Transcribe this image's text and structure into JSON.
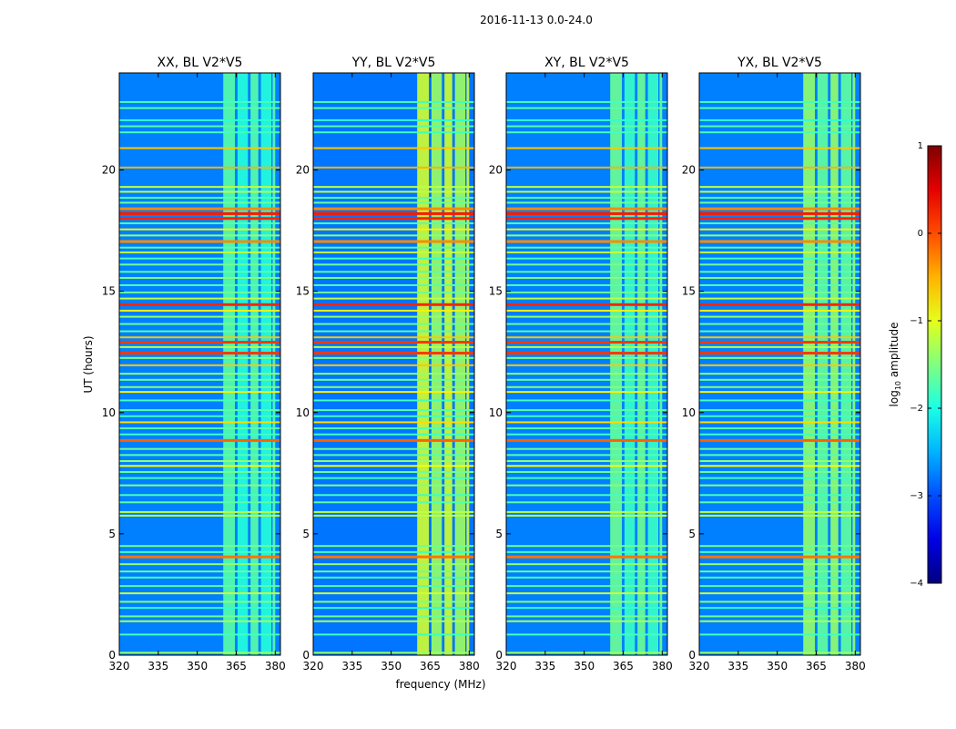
{
  "chart_data": {
    "type": "heatmap",
    "suptitle": "2016-11-13 0.0-24.0",
    "xlabel": "frequency (MHz)",
    "ylabel": "UT (hours)",
    "xlim": [
      320,
      382
    ],
    "ylim": [
      0,
      24
    ],
    "xticks": [
      "320",
      "335",
      "350",
      "365",
      "380"
    ],
    "yticks": [
      "0",
      "5",
      "10",
      "15",
      "20"
    ],
    "colormap": "jet",
    "colorbar": {
      "label_prefix": "log",
      "label_sub": "10",
      "label_suffix": " amplitude",
      "range": [
        -4,
        1
      ],
      "ticks": [
        "−4",
        "−3",
        "−2",
        "−1",
        "0",
        "1"
      ]
    },
    "rfi_band_mhz": [
      360,
      380
    ],
    "rfi_subbands_mhz": [
      [
        360,
        364.5
      ],
      [
        365.5,
        369.5
      ],
      [
        370.5,
        373.5
      ],
      [
        374.5,
        378.5
      ],
      [
        379,
        380
      ]
    ],
    "panels": [
      {
        "title": "XX, BL V2*V5",
        "noise_level": -2.75,
        "band_level": -1.7
      },
      {
        "title": "YY, BL V2*V5",
        "noise_level": -2.8,
        "band_level": -1.1
      },
      {
        "title": "XY, BL V2*V5",
        "noise_level": -2.75,
        "band_level": -1.6
      },
      {
        "title": "YX, BL V2*V5",
        "noise_level": -2.75,
        "band_level": -1.4
      }
    ],
    "broadband_rfi_lines": [
      {
        "ut": 0.1,
        "level": -1.4
      },
      {
        "ut": 0.85,
        "level": -1.8
      },
      {
        "ut": 1.4,
        "level": -1.3
      },
      {
        "ut": 1.6,
        "level": -1.6
      },
      {
        "ut": 1.95,
        "level": -1.9
      },
      {
        "ut": 2.2,
        "level": -1.5
      },
      {
        "ut": 2.55,
        "level": -1.1
      },
      {
        "ut": 2.85,
        "level": -1.7
      },
      {
        "ut": 3.2,
        "level": -1.8
      },
      {
        "ut": 3.45,
        "level": -1.6
      },
      {
        "ut": 3.75,
        "level": -1.4
      },
      {
        "ut": 4.05,
        "level": -0.2
      },
      {
        "ut": 4.25,
        "level": -1.8
      },
      {
        "ut": 4.5,
        "level": -1.6
      },
      {
        "ut": 5.75,
        "level": -1.2
      },
      {
        "ut": 5.9,
        "level": -1.2
      },
      {
        "ut": 6.3,
        "level": -1.7
      },
      {
        "ut": 6.6,
        "level": -1.8
      },
      {
        "ut": 7.0,
        "level": -1.5
      },
      {
        "ut": 7.3,
        "level": -1.8
      },
      {
        "ut": 7.55,
        "level": -1.6
      },
      {
        "ut": 7.8,
        "level": -0.9
      },
      {
        "ut": 8.0,
        "level": -1.4
      },
      {
        "ut": 8.25,
        "level": -1.7
      },
      {
        "ut": 8.5,
        "level": -1.6
      },
      {
        "ut": 8.85,
        "level": -0.1
      },
      {
        "ut": 9.1,
        "level": -1.8
      },
      {
        "ut": 9.35,
        "level": -1.7
      },
      {
        "ut": 9.6,
        "level": -0.7
      },
      {
        "ut": 9.85,
        "level": -1.8
      },
      {
        "ut": 10.1,
        "level": -1.7
      },
      {
        "ut": 10.5,
        "level": -1.8
      },
      {
        "ut": 10.85,
        "level": -0.8
      },
      {
        "ut": 11.05,
        "level": -1.5
      },
      {
        "ut": 11.35,
        "level": -1.6
      },
      {
        "ut": 11.6,
        "level": -1.4
      },
      {
        "ut": 11.95,
        "level": -0.6
      },
      {
        "ut": 12.25,
        "level": -1.5
      },
      {
        "ut": 12.45,
        "level": 0.1
      },
      {
        "ut": 12.7,
        "level": -1.2
      },
      {
        "ut": 12.9,
        "level": 0.1
      },
      {
        "ut": 13.1,
        "level": -0.6
      },
      {
        "ut": 13.35,
        "level": -1.7
      },
      {
        "ut": 13.65,
        "level": -1.6
      },
      {
        "ut": 13.95,
        "level": -1.4
      },
      {
        "ut": 14.2,
        "level": -0.8
      },
      {
        "ut": 14.45,
        "level": 0.2
      },
      {
        "ut": 14.7,
        "level": -1.2
      },
      {
        "ut": 14.95,
        "level": -1.6
      },
      {
        "ut": 15.25,
        "level": -1.7
      },
      {
        "ut": 15.55,
        "level": -1.5
      },
      {
        "ut": 15.8,
        "level": -1.7
      },
      {
        "ut": 16.1,
        "level": -1.6
      },
      {
        "ut": 16.35,
        "level": -1.8
      },
      {
        "ut": 16.6,
        "level": -1.2
      },
      {
        "ut": 16.8,
        "level": -1.7
      },
      {
        "ut": 17.05,
        "level": -0.3
      },
      {
        "ut": 17.3,
        "level": -1.4
      },
      {
        "ut": 17.55,
        "level": -0.8
      },
      {
        "ut": 17.8,
        "level": -1.7
      },
      {
        "ut": 18.0,
        "level": 0.2
      },
      {
        "ut": 18.2,
        "level": 0.25
      },
      {
        "ut": 18.4,
        "level": -0.3
      },
      {
        "ut": 18.65,
        "level": -1.6
      },
      {
        "ut": 18.85,
        "level": -1.7
      },
      {
        "ut": 19.1,
        "level": -1.2
      },
      {
        "ut": 19.3,
        "level": -1.2
      },
      {
        "ut": 20.1,
        "level": -0.5
      },
      {
        "ut": 20.9,
        "level": -0.6
      },
      {
        "ut": 21.55,
        "level": -1.8
      },
      {
        "ut": 21.8,
        "level": -1.7
      },
      {
        "ut": 22.05,
        "level": -1.9
      },
      {
        "ut": 22.55,
        "level": -1.7
      },
      {
        "ut": 22.8,
        "level": -1.8
      }
    ]
  }
}
